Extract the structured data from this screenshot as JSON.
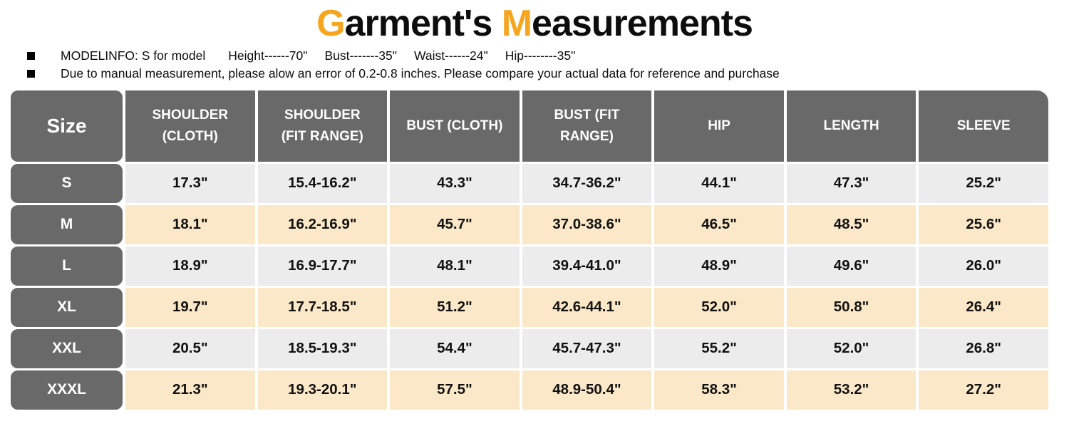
{
  "title": {
    "part1": "G",
    "part2": "arment's ",
    "part3": "M",
    "part4": "easurements"
  },
  "notes": {
    "line1": {
      "model": "MODELINFO: S for model",
      "stats": [
        "Height------70\"",
        "Bust-------35\"",
        "Waist------24\"",
        "Hip--------35\""
      ]
    },
    "line2": "Due to manual measurement, please alow an error of 0.2-0.8 inches. Please compare your actual data for reference and purchase"
  },
  "table": {
    "columns": [
      "Size",
      "SHOULDER (CLOTH)",
      "SHOULDER (FIT RANGE)",
      "BUST (CLOTH)",
      "BUST (FIT RANGE)",
      "HIP",
      "LENGTH",
      "SLEEVE"
    ],
    "rows": [
      {
        "size": "S",
        "values": [
          "17.3\"",
          "15.4-16.2\"",
          "43.3\"",
          "34.7-36.2\"",
          "44.1\"",
          "47.3\"",
          "25.2\""
        ]
      },
      {
        "size": "M",
        "values": [
          "18.1\"",
          "16.2-16.9\"",
          "45.7\"",
          "37.0-38.6\"",
          "46.5\"",
          "48.5\"",
          "25.6\""
        ]
      },
      {
        "size": "L",
        "values": [
          "18.9\"",
          "16.9-17.7\"",
          "48.1\"",
          "39.4-41.0\"",
          "48.9\"",
          "49.6\"",
          "26.0\""
        ]
      },
      {
        "size": "XL",
        "values": [
          "19.7\"",
          "17.7-18.5\"",
          "51.2\"",
          "42.6-44.1\"",
          "52.0\"",
          "50.8\"",
          "26.4\""
        ]
      },
      {
        "size": "XXL",
        "values": [
          "20.5\"",
          "18.5-19.3\"",
          "54.4\"",
          "45.7-47.3\"",
          "55.2\"",
          "52.0\"",
          "26.8\""
        ]
      },
      {
        "size": "XXXL",
        "values": [
          "21.3\"",
          "19.3-20.1\"",
          "57.5\"",
          "48.9-50.4\"",
          "58.3\"",
          "53.2\"",
          "27.2\""
        ]
      }
    ]
  },
  "colors": {
    "accent_orange": "#F6A51F",
    "header_gray": "#696969",
    "row_gray": "#ECECEC",
    "row_cream": "#FAE8C8"
  }
}
